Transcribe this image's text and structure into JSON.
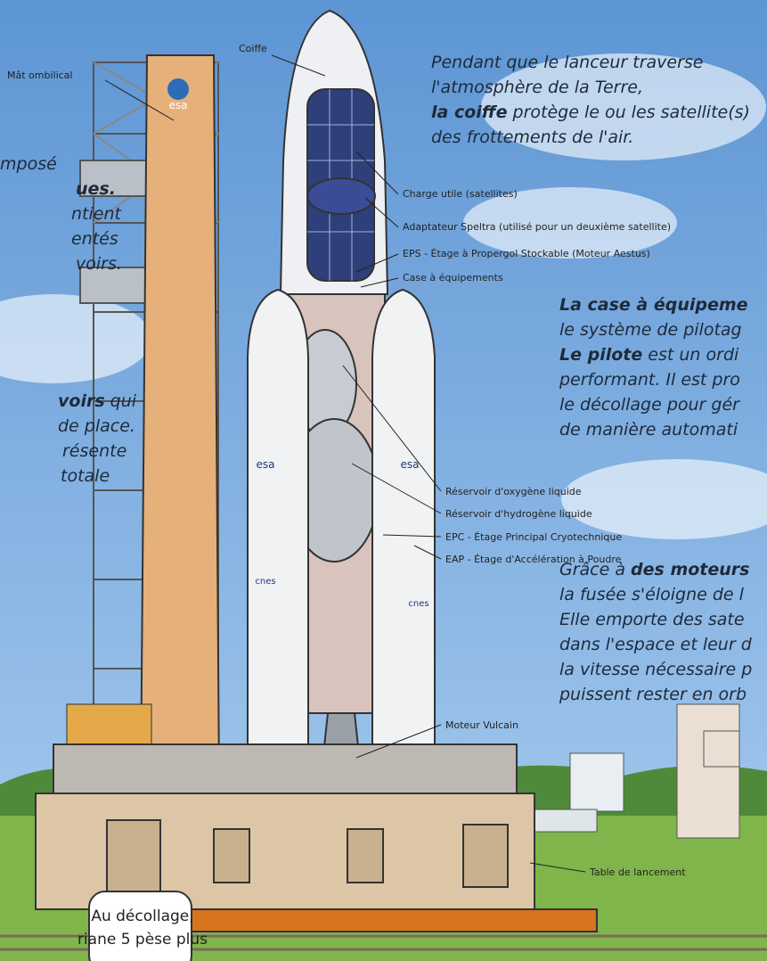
{
  "labels": [
    "Mât ombilical",
    "Coiffe",
    "Charge utile (satellites)",
    "Adaptateur Speltra (utilisé pour un deuxième satellite)",
    "EPS - Étage à Propergol Stockable (Moteur Aestus)",
    "Case à équipements",
    "Réservoir d'oxygène liquide",
    "Réservoir d'hydrogène liquide",
    "EPC - Étage Principal Cryotechnique",
    "EAP - Étage d'Accélération à Poudre",
    "Moteur Vulcain",
    "Table de lancement"
  ],
  "logos": [
    "esa",
    "esa",
    "esa",
    "cnes",
    "cnes"
  ],
  "paragraphs": [
    {
      "lines": [
        [
          {
            "text": "Pendant que le lanceur traverse"
          }
        ],
        [
          {
            "text": "l'atmosphère de la Terre,"
          }
        ],
        [
          {
            "text": "la coiffe",
            "bold": true
          },
          {
            "text": " protège le ou les satellite(s)"
          }
        ],
        [
          {
            "text": "des frottements de l'air."
          }
        ]
      ]
    },
    {
      "lines": [
        [
          {
            "text": "La case à équipeme",
            "bold": true
          }
        ],
        [
          {
            "text": "le système de pilotag"
          }
        ],
        [
          {
            "text": "Le pilote",
            "bold": true
          },
          {
            "text": " est un ordi"
          }
        ],
        [
          {
            "text": "performant. Il est pro"
          }
        ],
        [
          {
            "text": "le décollage pour gér"
          }
        ],
        [
          {
            "text": "de manière automati"
          }
        ]
      ]
    },
    {
      "lines": [
        [
          {
            "text": "Grâce à "
          },
          {
            "text": "des moteurs",
            "bold": true
          }
        ],
        [
          {
            "text": "la fusée s'éloigne de l"
          }
        ],
        [
          {
            "text": "Elle emporte des sate"
          }
        ],
        [
          {
            "text": "dans l'espace et leur d"
          }
        ],
        [
          {
            "text": "la vitesse nécessaire p"
          }
        ],
        [
          {
            "text": "puissent rester en orb"
          }
        ]
      ]
    },
    {
      "lines": [
        [
          {
            "text": "mposé"
          }
        ],
        [
          {
            "text": "ues.",
            "bold": true
          }
        ],
        [
          {
            "text": "ntient"
          }
        ],
        [
          {
            "text": "entés"
          }
        ],
        [
          {
            "text": "voirs."
          }
        ]
      ]
    },
    {
      "lines": [
        [
          {
            "text": "voirs",
            "bold": true
          },
          {
            "text": " qui"
          }
        ],
        [
          {
            "text": "de place."
          }
        ],
        [
          {
            "text": "résente"
          }
        ],
        [
          {
            "text": "totale"
          }
        ]
      ]
    }
  ],
  "bubble": [
    "Au décollage,",
    "riane 5 pèse plus"
  ]
}
